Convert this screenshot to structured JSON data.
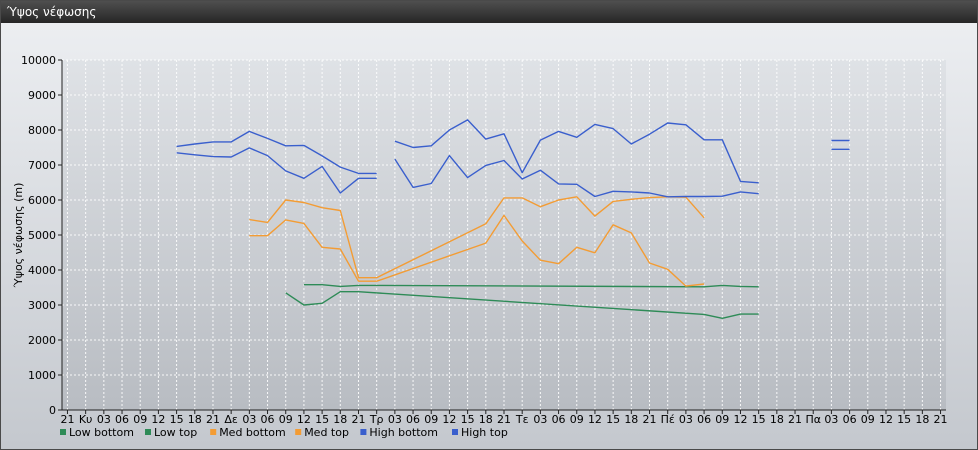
{
  "window": {
    "title": "Ύψος νέφωσης"
  },
  "colors": {
    "low": "#2e8b57",
    "med": "#f39c34",
    "high": "#3a5fcd",
    "grid": "#ffffff"
  },
  "chart_data": {
    "type": "line",
    "title": "",
    "ylabel": "Ύψος νέφωσης (m)",
    "xlabel": "",
    "ylim": [
      0,
      10000
    ],
    "yticks": [
      0,
      1000,
      2000,
      3000,
      4000,
      5000,
      6000,
      7000,
      8000,
      9000,
      10000
    ],
    "x_labels": [
      "21",
      "Κυ",
      "03",
      "06",
      "09",
      "12",
      "15",
      "18",
      "21",
      "Δε",
      "03",
      "06",
      "09",
      "12",
      "15",
      "18",
      "21",
      "Τρ",
      "03",
      "06",
      "09",
      "12",
      "15",
      "18",
      "21",
      "Τε",
      "03",
      "06",
      "09",
      "12",
      "15",
      "18",
      "21",
      "Πέ",
      "03",
      "06",
      "09",
      "12",
      "15",
      "18",
      "21",
      "Πα",
      "03",
      "06",
      "09",
      "12",
      "15",
      "18",
      "21"
    ],
    "grid": true,
    "legend_position": "bottom-left",
    "series": [
      {
        "name": "Low bottom",
        "color_key": "low",
        "points": [
          [
            12,
            3350
          ],
          [
            13,
            3000
          ],
          [
            14,
            3050
          ],
          [
            15,
            3380
          ],
          [
            16,
            3380
          ],
          [
            35,
            2730
          ],
          [
            36,
            2620
          ],
          [
            37,
            2740
          ],
          [
            38,
            2740
          ]
        ]
      },
      {
        "name": "Low top",
        "color_key": "low",
        "points": [
          [
            13,
            3580
          ],
          [
            14,
            3580
          ],
          [
            15,
            3530
          ],
          [
            16,
            3560
          ],
          [
            17,
            3560
          ],
          [
            35,
            3520
          ],
          [
            36,
            3560
          ],
          [
            37,
            3530
          ],
          [
            38,
            3520
          ]
        ]
      },
      {
        "name": "Med bottom",
        "color_key": "med",
        "points": [
          [
            10,
            4980
          ],
          [
            11,
            4980
          ],
          [
            12,
            5430
          ],
          [
            13,
            5330
          ],
          [
            14,
            4650
          ],
          [
            15,
            4600
          ],
          [
            16,
            3680
          ],
          [
            17,
            3680
          ],
          [
            23,
            4770
          ],
          [
            24,
            5560
          ],
          [
            25,
            4830
          ],
          [
            26,
            4280
          ],
          [
            27,
            4180
          ],
          [
            28,
            4650
          ],
          [
            29,
            4490
          ],
          [
            30,
            5290
          ],
          [
            31,
            5060
          ],
          [
            32,
            4200
          ],
          [
            33,
            4020
          ],
          [
            34,
            3540
          ],
          [
            35,
            3600
          ]
        ]
      },
      {
        "name": "Med top",
        "color_key": "med",
        "points": [
          [
            10,
            5440
          ],
          [
            11,
            5360
          ],
          [
            12,
            6000
          ],
          [
            13,
            5930
          ],
          [
            14,
            5780
          ],
          [
            15,
            5700
          ],
          [
            16,
            3780
          ],
          [
            17,
            3780
          ],
          [
            23,
            5320
          ],
          [
            24,
            6060
          ],
          [
            25,
            6060
          ],
          [
            26,
            5810
          ],
          [
            27,
            6000
          ],
          [
            28,
            6090
          ],
          [
            29,
            5540
          ],
          [
            30,
            5960
          ],
          [
            31,
            6020
          ],
          [
            32,
            6070
          ],
          [
            33,
            6090
          ],
          [
            34,
            6080
          ],
          [
            35,
            5490
          ]
        ]
      },
      {
        "name": "High bottom",
        "color_key": "high",
        "points": [
          [
            6,
            7350
          ],
          [
            7,
            7290
          ],
          [
            8,
            7240
          ],
          [
            9,
            7230
          ],
          [
            10,
            7490
          ],
          [
            11,
            7270
          ],
          [
            12,
            6830
          ],
          [
            13,
            6620
          ],
          [
            14,
            6960
          ],
          [
            15,
            6200
          ],
          [
            16,
            6620
          ],
          [
            17,
            6620
          ],
          null,
          [
            18,
            7170
          ],
          [
            19,
            6360
          ],
          [
            20,
            6470
          ],
          [
            21,
            7270
          ],
          [
            22,
            6640
          ],
          [
            23,
            6990
          ],
          [
            24,
            7130
          ],
          [
            25,
            6600
          ],
          [
            26,
            6850
          ],
          [
            27,
            6460
          ],
          [
            28,
            6450
          ],
          [
            29,
            6100
          ],
          [
            30,
            6250
          ],
          [
            31,
            6230
          ],
          [
            32,
            6200
          ],
          [
            33,
            6090
          ],
          [
            34,
            6100
          ],
          [
            35,
            6100
          ],
          [
            36,
            6110
          ],
          [
            37,
            6230
          ],
          [
            38,
            6180
          ],
          null,
          [
            42,
            7450
          ],
          [
            43,
            7450
          ]
        ]
      },
      {
        "name": "High top",
        "color_key": "high",
        "points": [
          [
            6,
            7530
          ],
          [
            7,
            7600
          ],
          [
            8,
            7660
          ],
          [
            9,
            7660
          ],
          [
            10,
            7960
          ],
          [
            11,
            7760
          ],
          [
            12,
            7550
          ],
          [
            13,
            7560
          ],
          [
            14,
            7260
          ],
          [
            15,
            6940
          ],
          [
            16,
            6760
          ],
          [
            17,
            6760
          ],
          null,
          [
            18,
            7680
          ],
          [
            19,
            7500
          ],
          [
            20,
            7550
          ],
          [
            21,
            8000
          ],
          [
            22,
            8290
          ],
          [
            23,
            7740
          ],
          [
            24,
            7890
          ],
          [
            25,
            6780
          ],
          [
            26,
            7710
          ],
          [
            27,
            7960
          ],
          [
            28,
            7790
          ],
          [
            29,
            8160
          ],
          [
            30,
            8040
          ],
          [
            31,
            7600
          ],
          [
            32,
            7880
          ],
          [
            33,
            8200
          ],
          [
            34,
            8150
          ],
          [
            35,
            7720
          ],
          [
            36,
            7720
          ],
          [
            37,
            6530
          ],
          [
            38,
            6490
          ],
          null,
          [
            42,
            7700
          ],
          [
            43,
            7700
          ]
        ]
      }
    ]
  }
}
